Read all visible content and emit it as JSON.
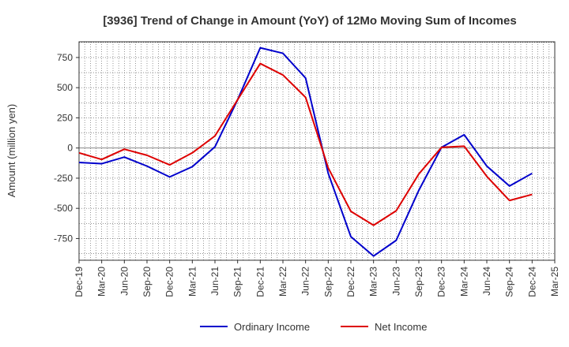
{
  "chart_data": {
    "type": "line",
    "title": "[3936]  Trend of Change in Amount (YoY) of 12Mo Moving Sum of Incomes",
    "xlabel": "",
    "ylabel": "Amount (million yen)",
    "categories": [
      "Dec-19",
      "Mar-20",
      "Jun-20",
      "Sep-20",
      "Dec-20",
      "Mar-21",
      "Jun-21",
      "Sep-21",
      "Dec-21",
      "Mar-22",
      "Jun-22",
      "Sep-22",
      "Dec-22",
      "Mar-23",
      "Jun-23",
      "Sep-23",
      "Dec-23",
      "Mar-24",
      "Jun-24",
      "Sep-24",
      "Dec-24",
      "Mar-25"
    ],
    "yticks": [
      -750,
      -500,
      -250,
      0,
      250,
      500,
      750
    ],
    "ytick_labels": [
      "-750",
      "-500",
      "-250",
      "0",
      "250",
      "500",
      "750"
    ],
    "ylim": [
      -930,
      880
    ],
    "grid": true,
    "legend_position": "bottom",
    "series": [
      {
        "name": "Ordinary Income",
        "color": "#0000cc",
        "values": [
          -120,
          -130,
          -75,
          -150,
          -240,
          -155,
          10,
          400,
          830,
          785,
          580,
          -210,
          -735,
          -895,
          -765,
          -350,
          5,
          110,
          -150,
          -315,
          -210,
          null
        ]
      },
      {
        "name": "Net Income",
        "color": "#dd0000",
        "values": [
          -40,
          -95,
          -10,
          -60,
          -140,
          -40,
          100,
          400,
          700,
          605,
          420,
          -165,
          -525,
          -640,
          -520,
          -215,
          5,
          15,
          -235,
          -435,
          -385,
          null
        ]
      }
    ]
  }
}
